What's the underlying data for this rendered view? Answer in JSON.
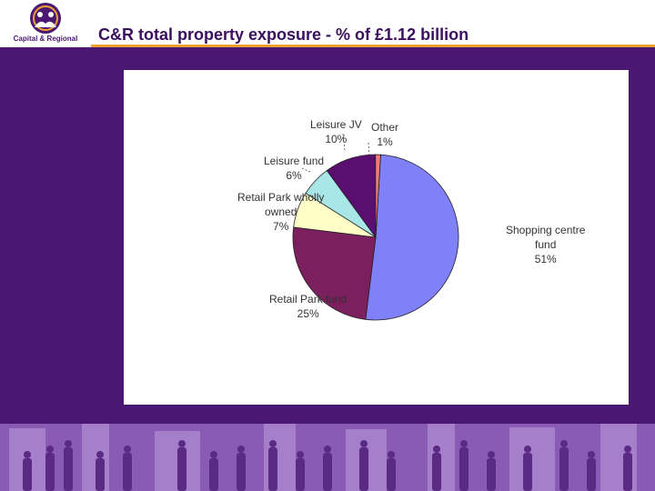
{
  "header": {
    "logo_text": "Capital & Regional",
    "title": "C&R total property exposure - % of £1.12 billion"
  },
  "colors": {
    "background": "#4a1872",
    "accent": "#f0a030"
  },
  "chart_data": {
    "type": "pie",
    "title": "",
    "slices": [
      {
        "label_lines": [
          "Shopping centre",
          "fund"
        ],
        "value_text": "51%",
        "value": 51,
        "color": "#8080f8"
      },
      {
        "label_lines": [
          "Retail Park fund"
        ],
        "value_text": "25%",
        "value": 25,
        "color": "#7b1f5e"
      },
      {
        "label_lines": [
          "Retail Park wholly",
          "owned"
        ],
        "value_text": "7%",
        "value": 7,
        "color": "#fffdc8"
      },
      {
        "label_lines": [
          "Leisure fund"
        ],
        "value_text": "6%",
        "value": 6,
        "color": "#a8e6e8"
      },
      {
        "label_lines": [
          "Leisure JV"
        ],
        "value_text": "10%",
        "value": 10,
        "color": "#5a0f70"
      },
      {
        "label_lines": [
          "Other"
        ],
        "value_text": "1%",
        "value": 1,
        "color": "#f07878"
      }
    ]
  }
}
